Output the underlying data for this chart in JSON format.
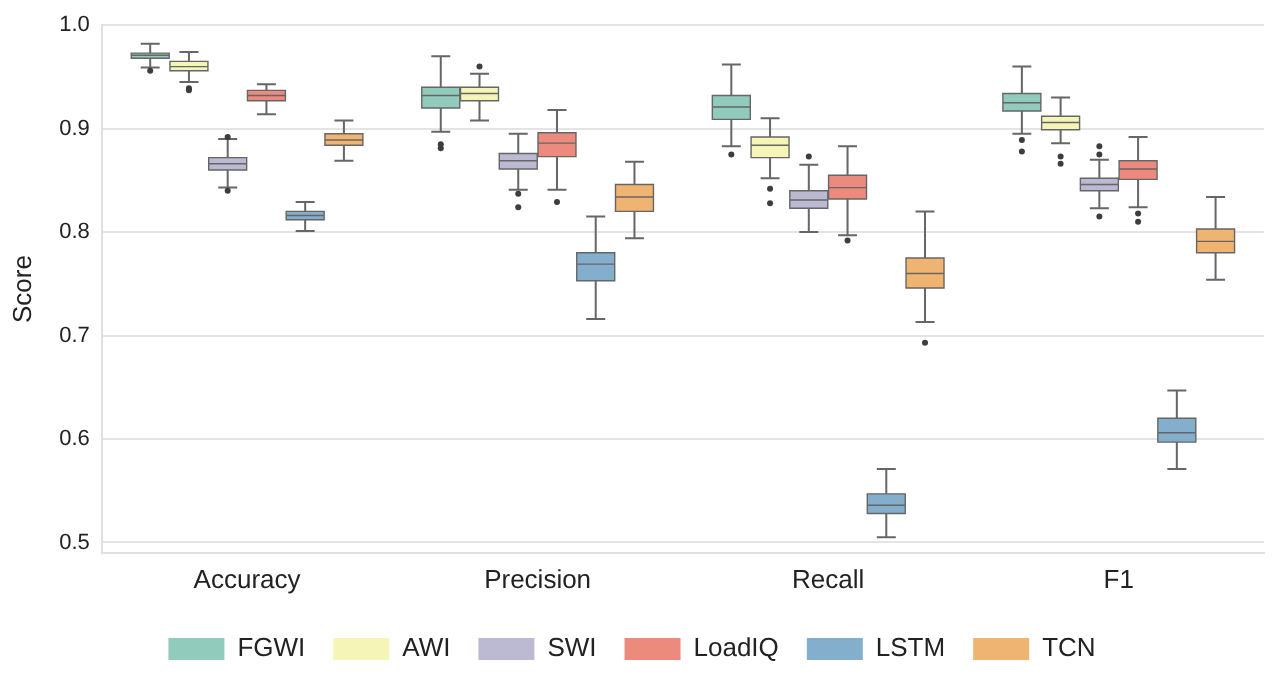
{
  "chart_data": {
    "type": "box",
    "ylabel": "Score",
    "categories": [
      "Accuracy",
      "Precision",
      "Recall",
      "F1"
    ],
    "ylim": [
      0.49,
      1.0
    ],
    "yticks": [
      0.5,
      0.6,
      0.7,
      0.8,
      0.9,
      {
        "value": 1.0,
        "label": "1.0"
      }
    ],
    "grid": "y",
    "legend": "bottom",
    "series": [
      {
        "name": "FGWI",
        "color": "#91cbbb",
        "boxes": [
          {
            "low": 0.959,
            "q1": 0.968,
            "median": 0.971,
            "q3": 0.973,
            "high": 0.982,
            "outliers": [
              0.956
            ]
          },
          {
            "low": 0.897,
            "q1": 0.92,
            "median": 0.932,
            "q3": 0.94,
            "high": 0.97,
            "outliers": [
              0.885,
              0.881
            ]
          },
          {
            "low": 0.883,
            "q1": 0.909,
            "median": 0.921,
            "q3": 0.932,
            "high": 0.962,
            "outliers": [
              0.875
            ]
          },
          {
            "low": 0.895,
            "q1": 0.917,
            "median": 0.925,
            "q3": 0.934,
            "high": 0.96,
            "outliers": [
              0.889,
              0.878
            ]
          }
        ]
      },
      {
        "name": "AWI",
        "color": "#f5f5b8",
        "boxes": [
          {
            "low": 0.945,
            "q1": 0.956,
            "median": 0.96,
            "q3": 0.965,
            "high": 0.974,
            "outliers": [
              0.939,
              0.937
            ]
          },
          {
            "low": 0.908,
            "q1": 0.927,
            "median": 0.934,
            "q3": 0.94,
            "high": 0.953,
            "outliers": [
              0.96
            ]
          },
          {
            "low": 0.852,
            "q1": 0.872,
            "median": 0.884,
            "q3": 0.892,
            "high": 0.91,
            "outliers": [
              0.842,
              0.828
            ]
          },
          {
            "low": 0.886,
            "q1": 0.899,
            "median": 0.906,
            "q3": 0.912,
            "high": 0.93,
            "outliers": [
              0.873,
              0.866
            ]
          }
        ]
      },
      {
        "name": "SWI",
        "color": "#bcb9d3",
        "boxes": [
          {
            "low": 0.843,
            "q1": 0.86,
            "median": 0.866,
            "q3": 0.872,
            "high": 0.89,
            "outliers": [
              0.892,
              0.84
            ]
          },
          {
            "low": 0.841,
            "q1": 0.861,
            "median": 0.869,
            "q3": 0.876,
            "high": 0.895,
            "outliers": [
              0.837,
              0.824
            ]
          },
          {
            "low": 0.8,
            "q1": 0.823,
            "median": 0.831,
            "q3": 0.84,
            "high": 0.865,
            "outliers": [
              0.873
            ]
          },
          {
            "low": 0.823,
            "q1": 0.84,
            "median": 0.846,
            "q3": 0.852,
            "high": 0.87,
            "outliers": [
              0.883,
              0.875,
              0.815
            ]
          }
        ]
      },
      {
        "name": "LoadIQ",
        "color": "#ec8a7e",
        "boxes": [
          {
            "low": 0.914,
            "q1": 0.927,
            "median": 0.932,
            "q3": 0.937,
            "high": 0.943
          },
          {
            "low": 0.841,
            "q1": 0.873,
            "median": 0.886,
            "q3": 0.896,
            "high": 0.918,
            "outliers": [
              0.829
            ]
          },
          {
            "low": 0.797,
            "q1": 0.832,
            "median": 0.843,
            "q3": 0.855,
            "high": 0.883,
            "outliers": [
              0.792
            ]
          },
          {
            "low": 0.824,
            "q1": 0.851,
            "median": 0.861,
            "q3": 0.869,
            "high": 0.892,
            "outliers": [
              0.818,
              0.81
            ]
          }
        ]
      },
      {
        "name": "LSTM",
        "color": "#83afcc",
        "boxes": [
          {
            "low": 0.801,
            "q1": 0.812,
            "median": 0.816,
            "q3": 0.82,
            "high": 0.829
          },
          {
            "low": 0.716,
            "q1": 0.753,
            "median": 0.769,
            "q3": 0.78,
            "high": 0.815
          },
          {
            "low": 0.505,
            "q1": 0.528,
            "median": 0.536,
            "q3": 0.547,
            "high": 0.571
          },
          {
            "low": 0.571,
            "q1": 0.597,
            "median": 0.606,
            "q3": 0.62,
            "high": 0.647
          }
        ]
      },
      {
        "name": "TCN",
        "color": "#f0b472",
        "boxes": [
          {
            "low": 0.869,
            "q1": 0.884,
            "median": 0.889,
            "q3": 0.895,
            "high": 0.908
          },
          {
            "low": 0.794,
            "q1": 0.82,
            "median": 0.834,
            "q3": 0.846,
            "high": 0.868
          },
          {
            "low": 0.713,
            "q1": 0.746,
            "median": 0.76,
            "q3": 0.775,
            "high": 0.82,
            "outliers": [
              0.693
            ]
          },
          {
            "low": 0.754,
            "q1": 0.78,
            "median": 0.791,
            "q3": 0.803,
            "high": 0.834
          }
        ]
      }
    ]
  }
}
